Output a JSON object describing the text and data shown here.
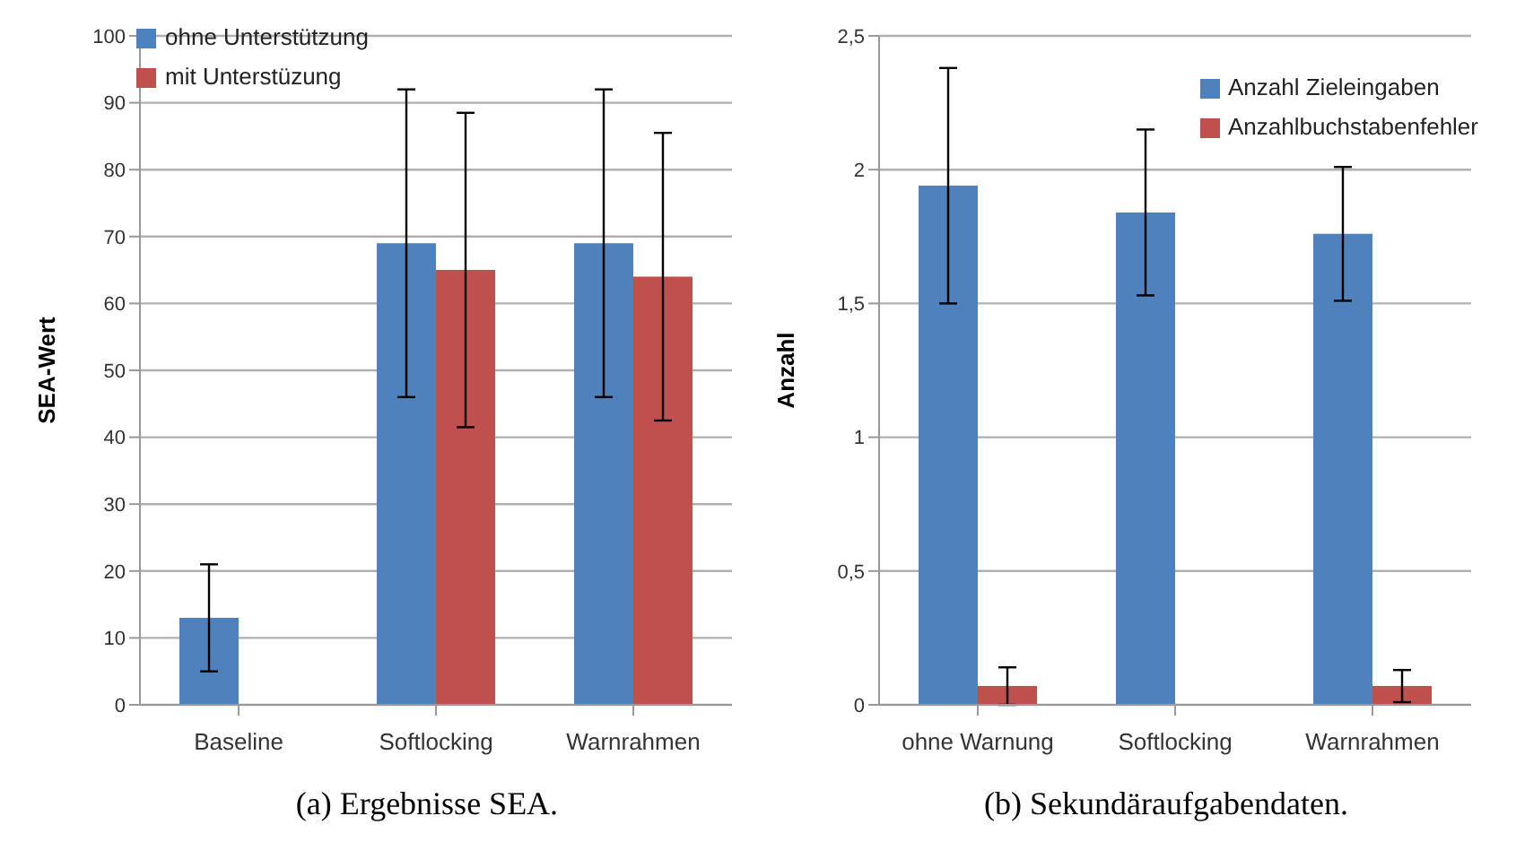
{
  "chart_data": [
    {
      "type": "bar",
      "categories": [
        "Baseline",
        "Softlocking",
        "Warnrahmen"
      ],
      "ylabel": "SEA-Wert",
      "ylim": [
        0,
        100
      ],
      "yticks": [
        0,
        10,
        20,
        30,
        40,
        50,
        60,
        70,
        80,
        90,
        100
      ],
      "grid": "y",
      "legend": "top left",
      "annotations": [
        "(a) Ergebnisse SEA."
      ],
      "series": [
        {
          "name": "ohne Unterstützung",
          "color": "#4f81bd",
          "values": [
            13,
            69,
            69
          ],
          "errors": [
            [
              5,
              21
            ],
            [
              46,
              92
            ],
            [
              46,
              92
            ]
          ]
        },
        {
          "name": "mit Unterstüzung",
          "color": "#c0504d",
          "values": [
            null,
            65,
            64
          ],
          "errors": [
            null,
            [
              41.5,
              88.5
            ],
            [
              42.5,
              85.5
            ]
          ]
        }
      ]
    },
    {
      "type": "bar",
      "categories": [
        "ohne Warnung",
        "Softlocking",
        "Warnrahmen"
      ],
      "ylabel": "Anzahl",
      "ylim": [
        0,
        2.5
      ],
      "yticks": [
        0,
        {
          "value": 0.5,
          "label": "0,5"
        },
        1,
        {
          "value": 1.5,
          "label": "1,5"
        },
        2,
        {
          "value": 2.5,
          "label": "2,5"
        }
      ],
      "grid": "y",
      "legend": "top right",
      "annotations": [
        "(b) Sekundäraufgabendaten."
      ],
      "series": [
        {
          "name": "Anzahl Zieleingaben",
          "color": "#4f81bd",
          "values": [
            1.94,
            1.84,
            1.76
          ],
          "errors": [
            [
              1.5,
              2.38
            ],
            [
              1.53,
              2.15
            ],
            [
              1.51,
              2.01
            ]
          ]
        },
        {
          "name": "Anzahlbuchstabenfehler",
          "color": "#c0504d",
          "values": [
            0.07,
            null,
            0.07
          ],
          "errors": [
            [
              0,
              0.14
            ],
            null,
            [
              0.01,
              0.13
            ]
          ]
        }
      ]
    }
  ]
}
